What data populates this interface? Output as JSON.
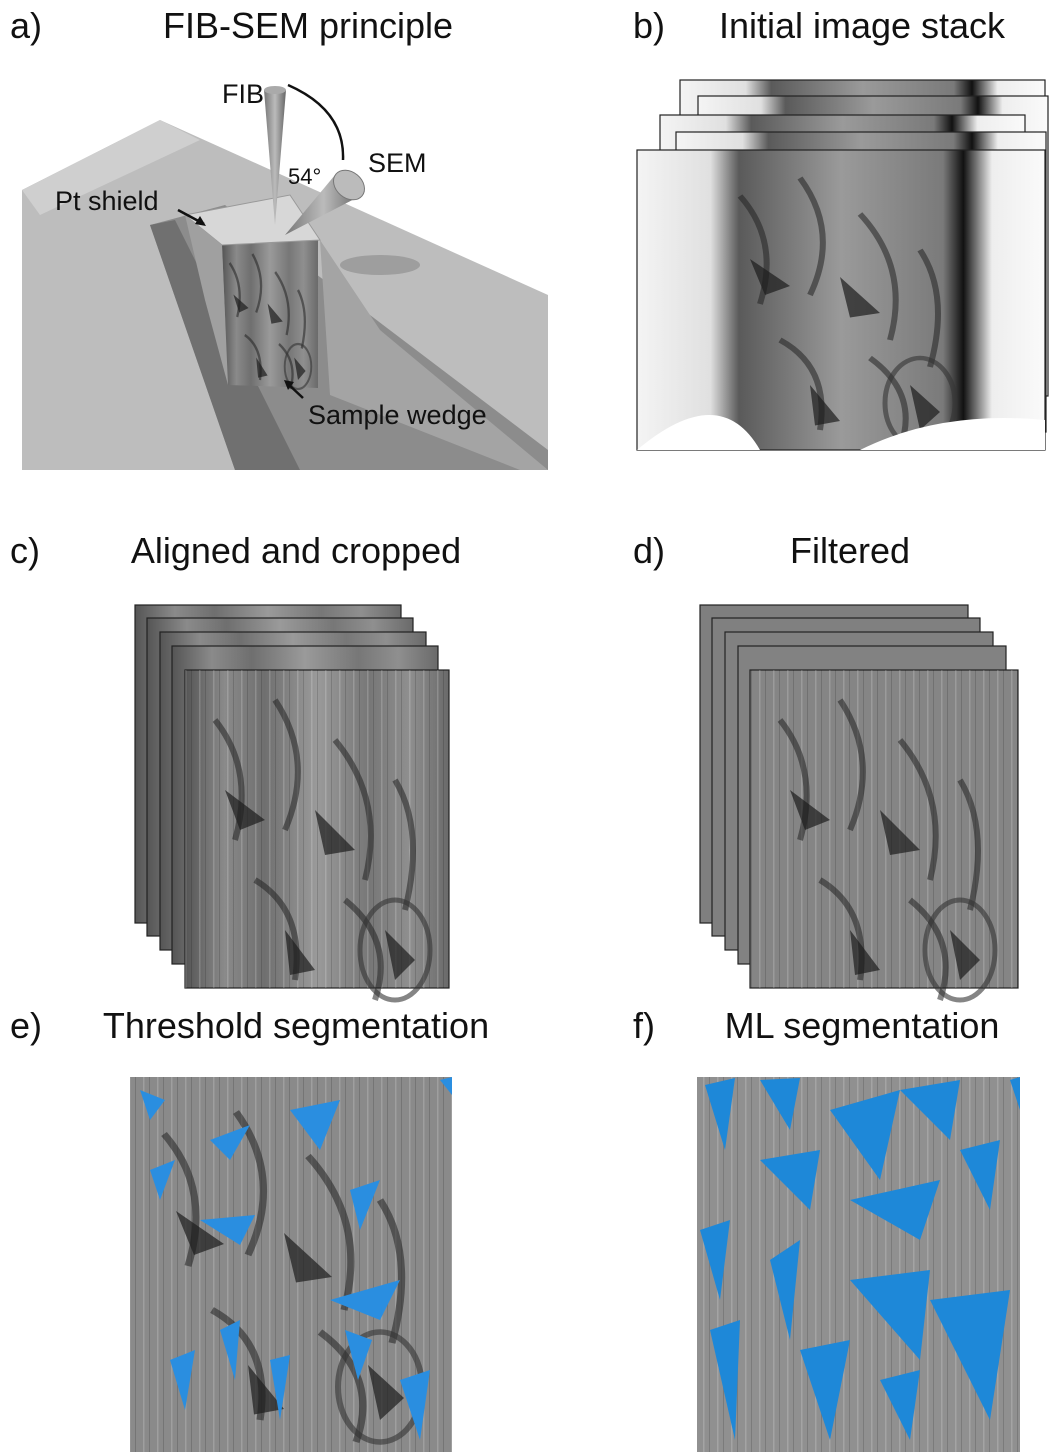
{
  "panels": [
    {
      "label": "a)",
      "title": "FIB-SEM principle",
      "annotations": [
        "FIB",
        "SEM",
        "54°",
        "Pt shield",
        "Sample wedge"
      ]
    },
    {
      "label": "b)",
      "title": "Initial image stack"
    },
    {
      "label": "c)",
      "title": "Aligned and cropped"
    },
    {
      "label": "d)",
      "title": "Filtered"
    },
    {
      "label": "e)",
      "title": "Threshold segmentation"
    },
    {
      "label": "f)",
      "title": "ML segmentation"
    }
  ]
}
